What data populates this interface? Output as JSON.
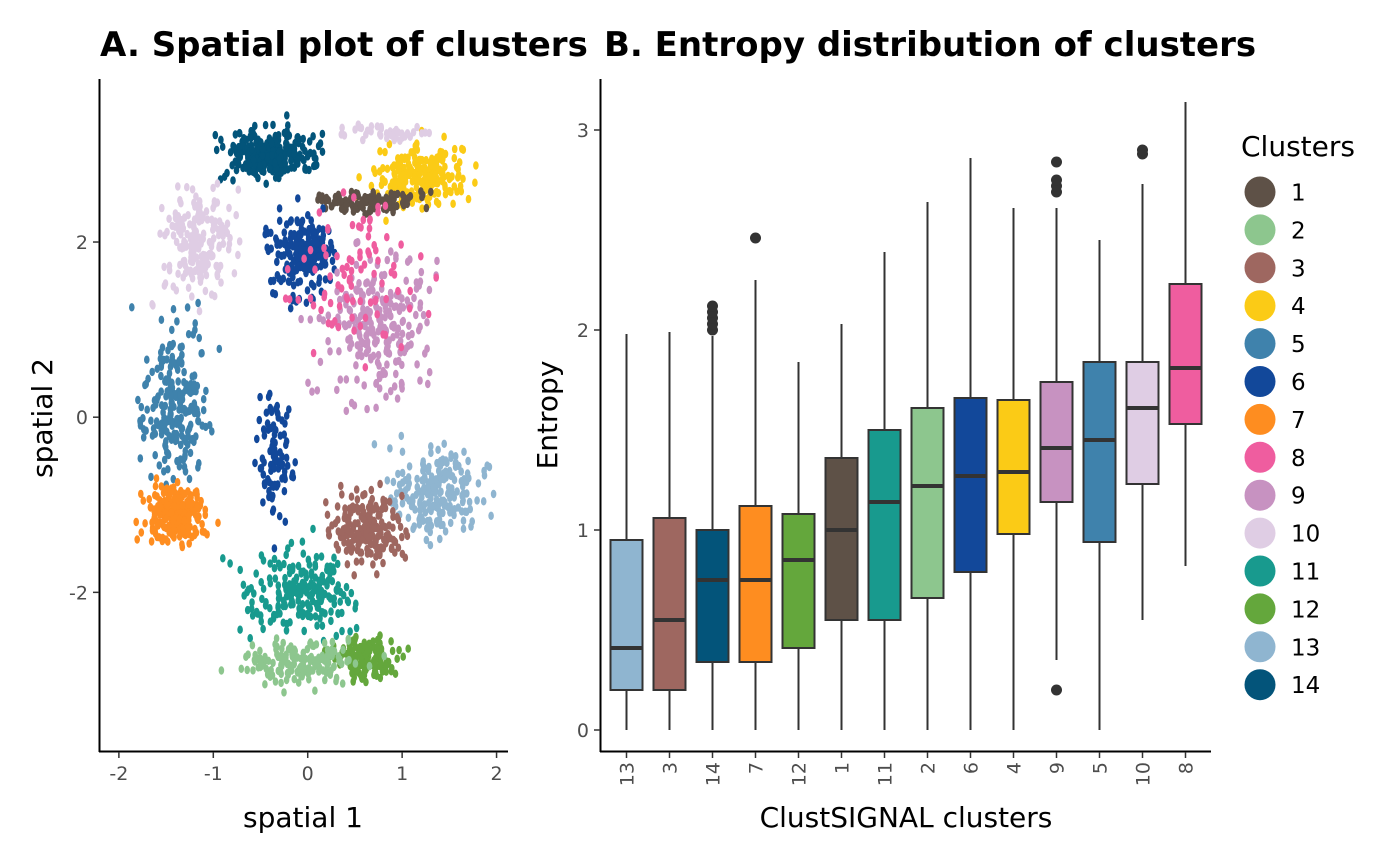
{
  "palette": {
    "1": "#5e5147",
    "2": "#8dc68e",
    "3": "#9e6760",
    "4": "#fbcb16",
    "5": "#3f82ac",
    "6": "#12489a",
    "7": "#fe8d20",
    "8": "#ef5d9f",
    "9": "#c792c1",
    "10": "#dfcde4",
    "11": "#189a8e",
    "12": "#64a73c",
    "13": "#8fb5d0",
    "14": "#03547a"
  },
  "chart_data": [
    {
      "type": "scatter",
      "title": "A. Spatial plot of clusters",
      "xlabel": "spatial 1",
      "ylabel": "spatial 2",
      "xlim": [
        -2.2,
        2.1
      ],
      "ylim": [
        -3.8,
        3.85
      ],
      "xticks": [
        -2,
        -1,
        0,
        1,
        2
      ],
      "xtick_labels": [
        "-2",
        "-1",
        "0",
        "1",
        "2"
      ],
      "yticks": [
        -2,
        0,
        2
      ],
      "ytick_labels": [
        "-2",
        "0",
        "2"
      ],
      "grid": false,
      "clusters": [
        {
          "cluster": "14",
          "center": [
            -0.4,
            3.0
          ],
          "spread": [
            0.45,
            0.28
          ],
          "n": 260
        },
        {
          "cluster": "4",
          "center": [
            1.2,
            2.75
          ],
          "spread": [
            0.48,
            0.35
          ],
          "n": 210
        },
        {
          "cluster": "1",
          "center": [
            0.6,
            2.45
          ],
          "spread": [
            0.55,
            0.13
          ],
          "n": 120
        },
        {
          "cluster": "10",
          "center": [
            -1.15,
            2.0
          ],
          "spread": [
            0.4,
            0.6
          ],
          "n": 190
        },
        {
          "cluster": "10",
          "center": [
            0.8,
            3.25
          ],
          "spread": [
            0.45,
            0.08
          ],
          "n": 40
        },
        {
          "cluster": "6",
          "center": [
            -0.05,
            1.85
          ],
          "spread": [
            0.32,
            0.45
          ],
          "n": 200
        },
        {
          "cluster": "6",
          "center": [
            -0.35,
            -0.5
          ],
          "spread": [
            0.2,
            0.65
          ],
          "n": 90
        },
        {
          "cluster": "9",
          "center": [
            0.75,
            1.0
          ],
          "spread": [
            0.55,
            0.8
          ],
          "n": 240
        },
        {
          "cluster": "8",
          "center": [
            0.45,
            1.6
          ],
          "spread": [
            0.7,
            1.1
          ],
          "n": 90
        },
        {
          "cluster": "5",
          "center": [
            -1.4,
            0.2
          ],
          "spread": [
            0.35,
            0.85
          ],
          "n": 220
        },
        {
          "cluster": "13",
          "center": [
            1.35,
            -0.9
          ],
          "spread": [
            0.45,
            0.55
          ],
          "n": 210
        },
        {
          "cluster": "3",
          "center": [
            0.65,
            -1.3
          ],
          "spread": [
            0.38,
            0.4
          ],
          "n": 190
        },
        {
          "cluster": "7",
          "center": [
            -1.4,
            -1.1
          ],
          "spread": [
            0.3,
            0.3
          ],
          "n": 230
        },
        {
          "cluster": "11",
          "center": [
            -0.1,
            -2.0
          ],
          "spread": [
            0.55,
            0.45
          ],
          "n": 210
        },
        {
          "cluster": "12",
          "center": [
            0.6,
            -2.75
          ],
          "spread": [
            0.35,
            0.25
          ],
          "n": 140
        },
        {
          "cluster": "2",
          "center": [
            -0.1,
            -2.8
          ],
          "spread": [
            0.6,
            0.25
          ],
          "n": 160
        }
      ]
    },
    {
      "type": "box",
      "title": "B. Entropy distribution of clusters",
      "xlabel": "ClustSIGNAL clusters",
      "ylabel": "Entropy",
      "ylim": [
        -0.1,
        3.25
      ],
      "yticks": [
        0,
        1,
        2,
        3
      ],
      "ytick_labels": [
        "0",
        "1",
        "2",
        "3"
      ],
      "grid": false,
      "categories": [
        "13",
        "3",
        "14",
        "7",
        "12",
        "1",
        "11",
        "2",
        "6",
        "4",
        "9",
        "5",
        "10",
        "8"
      ],
      "boxes": [
        {
          "cluster": "13",
          "min": 0.0,
          "q1": 0.2,
          "median": 0.41,
          "q3": 0.95,
          "max": 1.98,
          "outliers": []
        },
        {
          "cluster": "3",
          "min": 0.0,
          "q1": 0.2,
          "median": 0.55,
          "q3": 1.06,
          "max": 1.99,
          "outliers": []
        },
        {
          "cluster": "14",
          "min": 0.0,
          "q1": 0.34,
          "median": 0.75,
          "q3": 1.0,
          "max": 1.97,
          "outliers": [
            2.0,
            2.03,
            2.06,
            2.09,
            2.12
          ]
        },
        {
          "cluster": "7",
          "min": 0.0,
          "q1": 0.34,
          "median": 0.75,
          "q3": 1.12,
          "max": 2.25,
          "outliers": [
            2.46
          ]
        },
        {
          "cluster": "12",
          "min": 0.0,
          "q1": 0.41,
          "median": 0.85,
          "q3": 1.08,
          "max": 1.84,
          "outliers": []
        },
        {
          "cluster": "1",
          "min": 0.0,
          "q1": 0.55,
          "median": 1.0,
          "q3": 1.36,
          "max": 2.03,
          "outliers": []
        },
        {
          "cluster": "11",
          "min": 0.0,
          "q1": 0.55,
          "median": 1.14,
          "q3": 1.5,
          "max": 2.39,
          "outliers": []
        },
        {
          "cluster": "2",
          "min": 0.0,
          "q1": 0.66,
          "median": 1.22,
          "q3": 1.61,
          "max": 2.64,
          "outliers": []
        },
        {
          "cluster": "6",
          "min": 0.0,
          "q1": 0.79,
          "median": 1.27,
          "q3": 1.66,
          "max": 2.86,
          "outliers": []
        },
        {
          "cluster": "4",
          "min": 0.0,
          "q1": 0.98,
          "median": 1.29,
          "q3": 1.65,
          "max": 2.61,
          "outliers": []
        },
        {
          "cluster": "9",
          "min": 0.35,
          "q1": 1.14,
          "median": 1.41,
          "q3": 1.74,
          "max": 2.61,
          "outliers": [
            0.2,
            2.69,
            2.72,
            2.75,
            2.84
          ]
        },
        {
          "cluster": "5",
          "min": 0.0,
          "q1": 0.94,
          "median": 1.45,
          "q3": 1.84,
          "max": 2.45,
          "outliers": []
        },
        {
          "cluster": "10",
          "min": 0.55,
          "q1": 1.23,
          "median": 1.61,
          "q3": 1.84,
          "max": 2.73,
          "outliers": [
            2.88,
            2.9
          ]
        },
        {
          "cluster": "8",
          "min": 0.82,
          "q1": 1.53,
          "median": 1.81,
          "q3": 2.23,
          "max": 3.14,
          "outliers": []
        }
      ]
    }
  ],
  "legend": {
    "title": "Clusters",
    "items": [
      "1",
      "2",
      "3",
      "4",
      "5",
      "6",
      "7",
      "8",
      "9",
      "10",
      "11",
      "12",
      "13",
      "14"
    ]
  }
}
